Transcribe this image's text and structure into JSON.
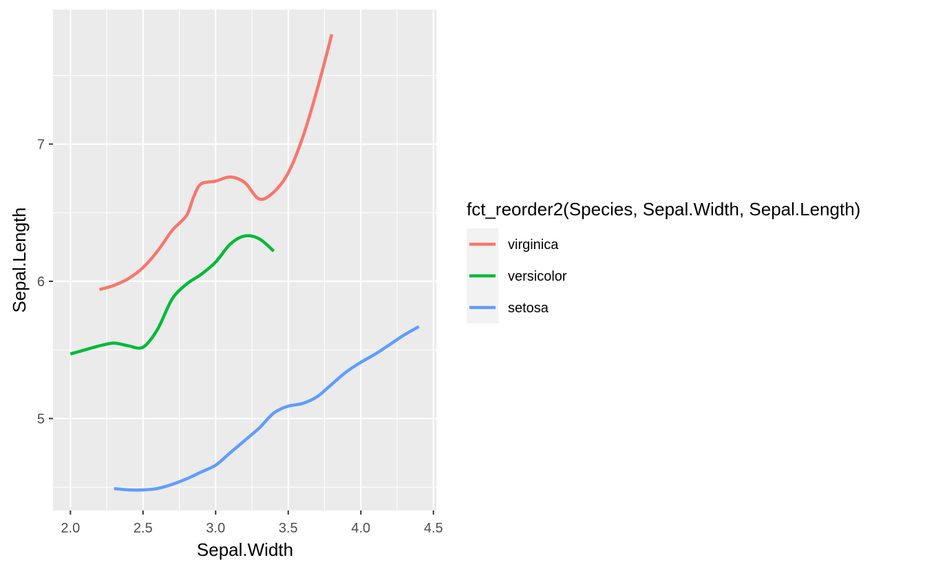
{
  "chart_data": {
    "type": "line",
    "xlabel": "Sepal.Width",
    "ylabel": "Sepal.Length",
    "xlim": [
      1.88,
      4.52
    ],
    "ylim": [
      4.33,
      7.98
    ],
    "x_ticks": [
      2.0,
      2.5,
      3.0,
      3.5,
      4.0,
      4.5
    ],
    "x_tick_labels": [
      "2.0",
      "2.5",
      "3.0",
      "3.5",
      "4.0",
      "4.5"
    ],
    "y_ticks": [
      5,
      6,
      7
    ],
    "y_tick_labels": [
      "5",
      "6",
      "7"
    ],
    "grid": true,
    "legend": {
      "title": "fct_reorder2(Species, Sepal.Width, Sepal.Length)",
      "placement": "right"
    },
    "series": [
      {
        "name": "virginica",
        "color": "#F8766D",
        "points": [
          [
            2.2,
            5.94
          ],
          [
            2.3,
            5.97
          ],
          [
            2.4,
            6.02
          ],
          [
            2.5,
            6.1
          ],
          [
            2.6,
            6.22
          ],
          [
            2.7,
            6.37
          ],
          [
            2.8,
            6.48
          ],
          [
            2.85,
            6.62
          ],
          [
            2.9,
            6.71
          ],
          [
            3.0,
            6.73
          ],
          [
            3.1,
            6.76
          ],
          [
            3.2,
            6.72
          ],
          [
            3.3,
            6.6
          ],
          [
            3.4,
            6.65
          ],
          [
            3.5,
            6.79
          ],
          [
            3.6,
            7.05
          ],
          [
            3.7,
            7.4
          ],
          [
            3.8,
            7.8
          ]
        ]
      },
      {
        "name": "versicolor",
        "color": "#00BA38",
        "points": [
          [
            2.0,
            5.47
          ],
          [
            2.1,
            5.5
          ],
          [
            2.2,
            5.53
          ],
          [
            2.3,
            5.55
          ],
          [
            2.4,
            5.53
          ],
          [
            2.5,
            5.52
          ],
          [
            2.6,
            5.65
          ],
          [
            2.7,
            5.87
          ],
          [
            2.8,
            5.98
          ],
          [
            2.9,
            6.05
          ],
          [
            3.0,
            6.14
          ],
          [
            3.1,
            6.27
          ],
          [
            3.2,
            6.33
          ],
          [
            3.3,
            6.31
          ],
          [
            3.4,
            6.22
          ]
        ]
      },
      {
        "name": "setosa",
        "color": "#619CFF",
        "points": [
          [
            2.3,
            4.49
          ],
          [
            2.4,
            4.48
          ],
          [
            2.5,
            4.48
          ],
          [
            2.6,
            4.49
          ],
          [
            2.7,
            4.52
          ],
          [
            2.8,
            4.56
          ],
          [
            2.9,
            4.61
          ],
          [
            3.0,
            4.66
          ],
          [
            3.1,
            4.75
          ],
          [
            3.2,
            4.84
          ],
          [
            3.3,
            4.93
          ],
          [
            3.4,
            5.04
          ],
          [
            3.5,
            5.09
          ],
          [
            3.6,
            5.11
          ],
          [
            3.7,
            5.16
          ],
          [
            3.8,
            5.25
          ],
          [
            3.9,
            5.34
          ],
          [
            4.0,
            5.41
          ],
          [
            4.1,
            5.47
          ],
          [
            4.2,
            5.54
          ],
          [
            4.3,
            5.61
          ],
          [
            4.4,
            5.67
          ]
        ]
      }
    ],
    "legend_order": [
      "virginica",
      "versicolor",
      "setosa"
    ]
  }
}
